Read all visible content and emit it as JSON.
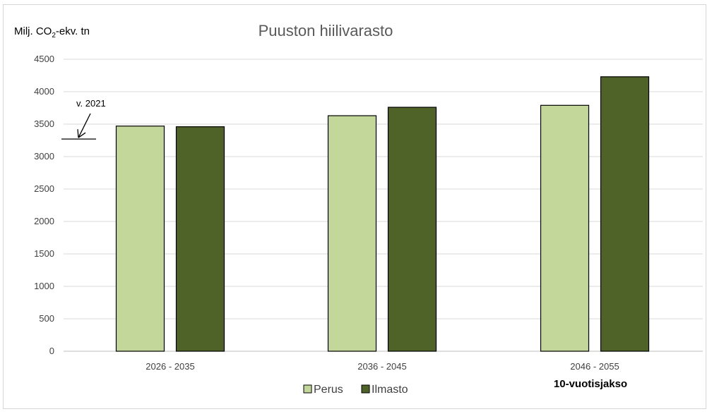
{
  "chart_data": {
    "type": "bar",
    "title": "Puuston hiilivarasto",
    "ylabel": "Milj. CO₂-ekv. tn",
    "xlabel": "10-vuotisjakso",
    "categories": [
      "2026 - 2035",
      "2036 - 2045",
      "2046 - 2055"
    ],
    "series": [
      {
        "name": "Perus",
        "values": [
          3470,
          3630,
          3790
        ],
        "color": "#c4d79b"
      },
      {
        "name": "Ilmasto",
        "values": [
          3460,
          3760,
          4230
        ],
        "color": "#4f6228"
      }
    ],
    "ylim": [
      0,
      4500
    ],
    "yticks": [
      "0",
      "500",
      "1000",
      "1500",
      "2000",
      "2500",
      "3000",
      "3500",
      "4000",
      "4500"
    ],
    "grid": true,
    "legend_position": "bottom",
    "annotation": {
      "text": "v. 2021",
      "value": 3270
    }
  }
}
